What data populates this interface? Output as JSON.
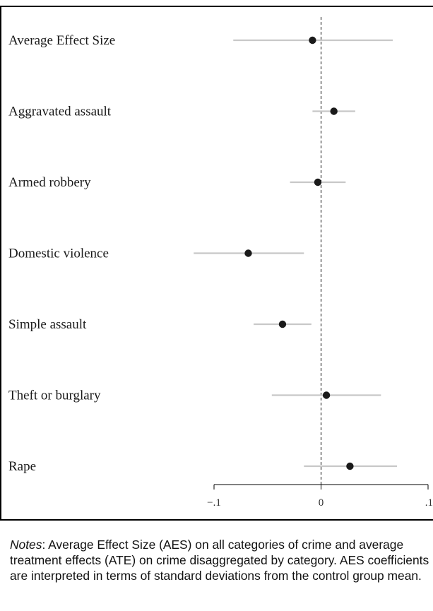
{
  "chart_data": {
    "type": "scatter",
    "orientation": "horizontal",
    "categories": [
      "Average Effect Size",
      "Aggravated assault",
      "Armed robbery",
      "Domestic violence",
      "Simple assault",
      "Theft or burglary",
      "Rape"
    ],
    "points": [
      {
        "estimate": -0.008,
        "ci": [
          -0.082,
          0.067
        ]
      },
      {
        "estimate": 0.012,
        "ci": [
          -0.008,
          0.032
        ]
      },
      {
        "estimate": -0.003,
        "ci": [
          -0.029,
          0.023
        ]
      },
      {
        "estimate": -0.068,
        "ci": [
          -0.119,
          -0.016
        ]
      },
      {
        "estimate": -0.036,
        "ci": [
          -0.063,
          -0.009
        ]
      },
      {
        "estimate": 0.005,
        "ci": [
          -0.046,
          0.056
        ]
      },
      {
        "estimate": 0.027,
        "ci": [
          -0.016,
          0.071
        ]
      }
    ],
    "xticks": [
      {
        "value": -0.1,
        "label": "−.1"
      },
      {
        "value": 0,
        "label": "0"
      },
      {
        "value": 0.1,
        "label": ".1"
      }
    ],
    "xlim": [
      -0.1,
      0.1
    ],
    "reference_line": 0,
    "colors": {
      "point": "#1a1a1a",
      "ci": "#c8c8c8",
      "reference": "#000000"
    }
  },
  "notes": {
    "label": "Notes",
    "text": ": Average Effect Size (AES) on all categories of crime and average treatment effects (ATE) on crime disaggregated by category. AES coefficients are interpreted in terms of standard deviations from the control group mean."
  }
}
